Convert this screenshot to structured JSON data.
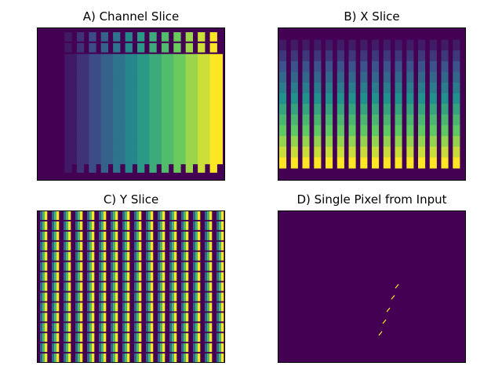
{
  "colors": {
    "viridis_stops": [
      "#440154",
      "#3b528b",
      "#21918c",
      "#5ec962",
      "#fde725"
    ],
    "background": "#ffffff",
    "frame": "#000000"
  },
  "chart_data": [
    {
      "type": "heatmap",
      "title": "A) Channel Slice",
      "grid": false,
      "axes_ticks": false,
      "pattern": "column-gradient",
      "columns": 14,
      "rows": 13,
      "value_range": [
        0,
        1
      ]
    },
    {
      "type": "heatmap",
      "title": "B) X Slice",
      "grid": false,
      "axes_ticks": false,
      "pattern": "row-gradient",
      "columns": 16,
      "rows": 13,
      "value_range": [
        0,
        1
      ]
    },
    {
      "type": "heatmap",
      "title": "C) Y Slice",
      "grid": false,
      "axes_ticks": false,
      "pattern": "within-cell-gradient",
      "columns": 16,
      "rows": 15,
      "value_range": [
        0,
        1
      ]
    },
    {
      "type": "heatmap",
      "title": "D) Single Pixel from Input",
      "grid": false,
      "axes_ticks": false,
      "pattern": "sparse-diagonal",
      "value_range": [
        0,
        1
      ]
    }
  ]
}
